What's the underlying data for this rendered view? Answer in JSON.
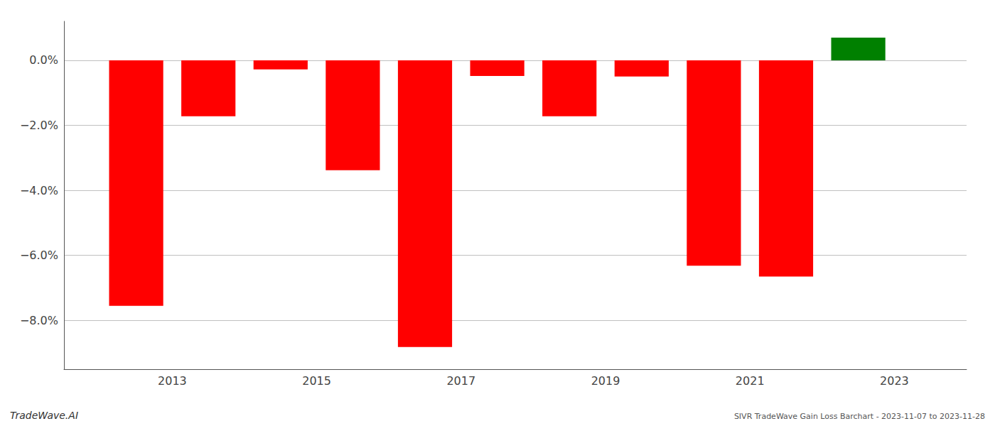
{
  "chart_data": {
    "type": "bar",
    "x": [
      2012.5,
      2013.5,
      2014.5,
      2015.5,
      2016.5,
      2017.5,
      2018.5,
      2019.5,
      2020.5,
      2021.5,
      2022.5
    ],
    "values": [
      -7.55,
      -1.72,
      -0.28,
      -3.38,
      -8.82,
      -0.48,
      -1.72,
      -0.5,
      -6.32,
      -6.65,
      0.7
    ],
    "colors": [
      "#ff0000",
      "#ff0000",
      "#ff0000",
      "#ff0000",
      "#ff0000",
      "#ff0000",
      "#ff0000",
      "#ff0000",
      "#ff0000",
      "#ff0000",
      "#008000"
    ],
    "xlim": [
      2011.5,
      2024.0
    ],
    "xticks": [
      2013,
      2015,
      2017,
      2019,
      2021,
      2023
    ],
    "ylim": [
      -9.5,
      1.2
    ],
    "yticks": [
      {
        "value": 0.0,
        "label": "0.0%"
      },
      {
        "value": -2.0,
        "label": "−2.0%"
      },
      {
        "value": -4.0,
        "label": "−4.0%"
      },
      {
        "value": -6.0,
        "label": "−6.0%"
      },
      {
        "value": -8.0,
        "label": "−8.0%"
      }
    ],
    "grid": true,
    "annotations": [
      "TradeWave.AI",
      "SIVR TradeWave Gain Loss Barchart - 2023-11-07 to 2023-11-28"
    ]
  }
}
